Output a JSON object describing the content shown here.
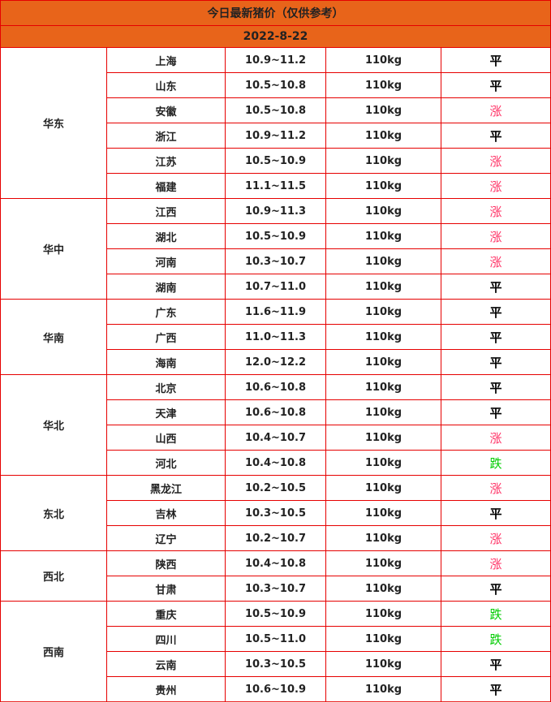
{
  "title": "今日最新猪价（仅供参考）",
  "date": "2022-8-22",
  "colors": {
    "header_bg": "#e8641a",
    "border": "#e60000",
    "up": "#ff3366",
    "down": "#00cc00",
    "flat": "#000000"
  },
  "regions": [
    {
      "name": "华东",
      "rows": [
        {
          "province": "上海",
          "price": "10.9~11.2",
          "weight": "110kg",
          "trend": "平"
        },
        {
          "province": "山东",
          "price": "10.5~10.8",
          "weight": "110kg",
          "trend": "平"
        },
        {
          "province": "安徽",
          "price": "10.5~10.8",
          "weight": "110kg",
          "trend": "涨"
        },
        {
          "province": "浙江",
          "price": "10.9~11.2",
          "weight": "110kg",
          "trend": "平"
        },
        {
          "province": "江苏",
          "price": "10.5~10.9",
          "weight": "110kg",
          "trend": "涨"
        },
        {
          "province": "福建",
          "price": "11.1~11.5",
          "weight": "110kg",
          "trend": "涨"
        }
      ]
    },
    {
      "name": "华中",
      "rows": [
        {
          "province": "江西",
          "price": "10.9~11.3",
          "weight": "110kg",
          "trend": "涨"
        },
        {
          "province": "湖北",
          "price": "10.5~10.9",
          "weight": "110kg",
          "trend": "涨"
        },
        {
          "province": "河南",
          "price": "10.3~10.7",
          "weight": "110kg",
          "trend": "涨"
        },
        {
          "province": "湖南",
          "price": "10.7~11.0",
          "weight": "110kg",
          "trend": "平"
        }
      ]
    },
    {
      "name": "华南",
      "rows": [
        {
          "province": "广东",
          "price": "11.6~11.9",
          "weight": "110kg",
          "trend": "平"
        },
        {
          "province": "广西",
          "price": "11.0~11.3",
          "weight": "110kg",
          "trend": "平"
        },
        {
          "province": "海南",
          "price": "12.0~12.2",
          "weight": "110kg",
          "trend": "平"
        }
      ]
    },
    {
      "name": "华北",
      "rows": [
        {
          "province": "北京",
          "price": "10.6~10.8",
          "weight": "110kg",
          "trend": "平"
        },
        {
          "province": "天津",
          "price": "10.6~10.8",
          "weight": "110kg",
          "trend": "平"
        },
        {
          "province": "山西",
          "price": "10.4~10.7",
          "weight": "110kg",
          "trend": "涨"
        },
        {
          "province": "河北",
          "price": "10.4~10.8",
          "weight": "110kg",
          "trend": "跌"
        }
      ]
    },
    {
      "name": "东北",
      "rows": [
        {
          "province": "黑龙江",
          "price": "10.2~10.5",
          "weight": "110kg",
          "trend": "涨"
        },
        {
          "province": "吉林",
          "price": "10.3~10.5",
          "weight": "110kg",
          "trend": "平"
        },
        {
          "province": "辽宁",
          "price": "10.2~10.7",
          "weight": "110kg",
          "trend": "涨"
        }
      ]
    },
    {
      "name": "西北",
      "rows": [
        {
          "province": "陕西",
          "price": "10.4~10.8",
          "weight": "110kg",
          "trend": "涨"
        },
        {
          "province": "甘肃",
          "price": "10.3~10.7",
          "weight": "110kg",
          "trend": "平"
        }
      ]
    },
    {
      "name": "西南",
      "rows": [
        {
          "province": "重庆",
          "price": "10.5~10.9",
          "weight": "110kg",
          "trend": "跌"
        },
        {
          "province": "四川",
          "price": "10.5~11.0",
          "weight": "110kg",
          "trend": "跌"
        },
        {
          "province": "云南",
          "price": "10.3~10.5",
          "weight": "110kg",
          "trend": "平"
        },
        {
          "province": "贵州",
          "price": "10.6~10.9",
          "weight": "110kg",
          "trend": "平"
        }
      ]
    }
  ]
}
